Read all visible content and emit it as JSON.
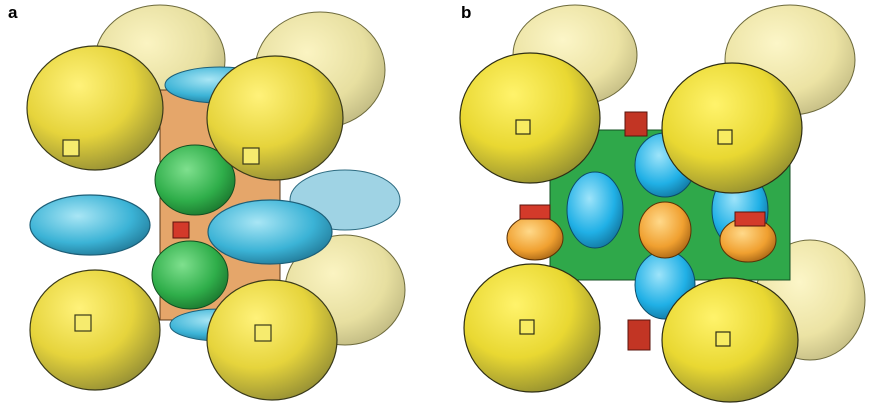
{
  "panels": [
    {
      "label": "a"
    },
    {
      "label": "b"
    }
  ],
  "colors": {
    "yellow_cage": "#f2e34a",
    "yellow_shade": "#9b9a3c",
    "cyan_cage": "#3bb3d6",
    "green_cage": "#2fae4a",
    "red_cage": "#d33a2a",
    "orange_cage": "#f0a030",
    "edge": "#3a3a1a"
  }
}
